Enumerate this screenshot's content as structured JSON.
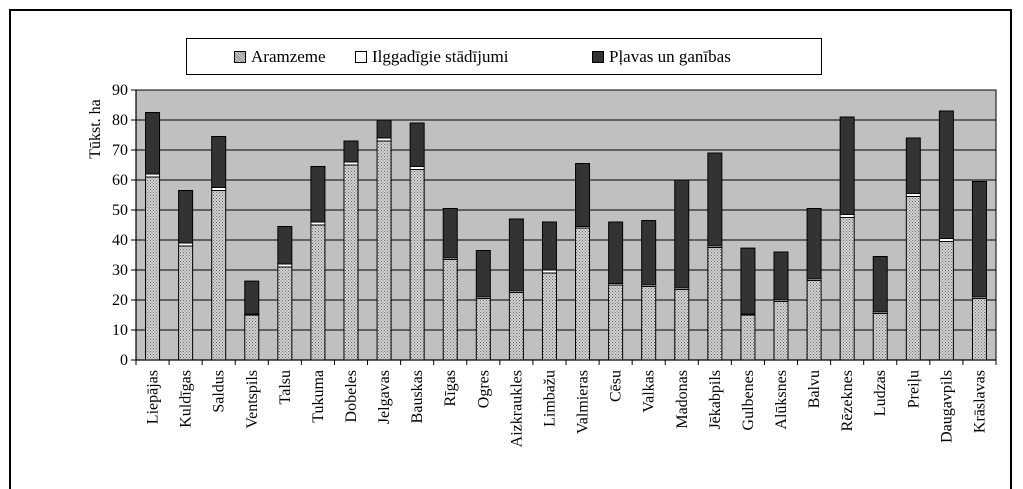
{
  "chart_data": {
    "type": "bar",
    "stacked": true,
    "title": "",
    "xlabel": "",
    "ylabel": "Tūkst. ha",
    "ylim": [
      0,
      90
    ],
    "yticks": [
      0,
      10,
      20,
      30,
      40,
      50,
      60,
      70,
      80,
      90
    ],
    "grid": true,
    "legend_position": "top",
    "categories": [
      "Liepājas",
      "Kuldīgas",
      "Saldus",
      "Ventspils",
      "Talsu",
      "Tukuma",
      "Dobeles",
      "Jelgavas",
      "Bauskas",
      "Rīgas",
      "Ogres",
      "Aizkraukles",
      "Limbažu",
      "Valmieras",
      "Cēsu",
      "Valkas",
      "Madonas",
      "Jēkabpils",
      "Gulbenes",
      "Alūksnes",
      "Balvu",
      "Rēzeknes",
      "Ludzas",
      "Preiļu",
      "Daugavpils",
      "Krāslavas"
    ],
    "series": [
      {
        "name": "Aramzeme",
        "color": "#b8b8b8",
        "pattern": "dotted",
        "values": [
          61,
          38,
          56.5,
          15,
          31,
          45,
          65,
          73,
          63.5,
          33.5,
          20.5,
          22.5,
          29,
          44,
          25,
          24.5,
          23.5,
          37.5,
          15,
          19.5,
          26.5,
          47.5,
          15.5,
          54.5,
          39.5,
          20.5
        ]
      },
      {
        "name": "Ilggadīgie stādījumi",
        "color": "#ffffff",
        "pattern": "solid",
        "values": [
          1,
          1,
          1,
          0.3,
          1,
          1,
          1,
          1,
          1,
          0.5,
          0.5,
          0.5,
          1,
          0.5,
          0.5,
          0.5,
          0.5,
          0.5,
          0.3,
          0.5,
          0.5,
          1,
          0.5,
          1,
          1,
          0.5
        ]
      },
      {
        "name": "Pļavas un ganības",
        "color": "#333333",
        "pattern": "solid",
        "values": [
          20.5,
          17.5,
          17,
          11,
          12.5,
          18.5,
          7,
          6,
          14.5,
          16.5,
          15.5,
          24,
          16,
          21,
          20.5,
          21.5,
          36,
          31,
          22,
          16,
          23.5,
          32.5,
          18.5,
          18.5,
          42.5,
          38.5
        ]
      }
    ],
    "colors": {
      "plot_background": "#c0c0c0",
      "gridline": "#000000"
    }
  }
}
